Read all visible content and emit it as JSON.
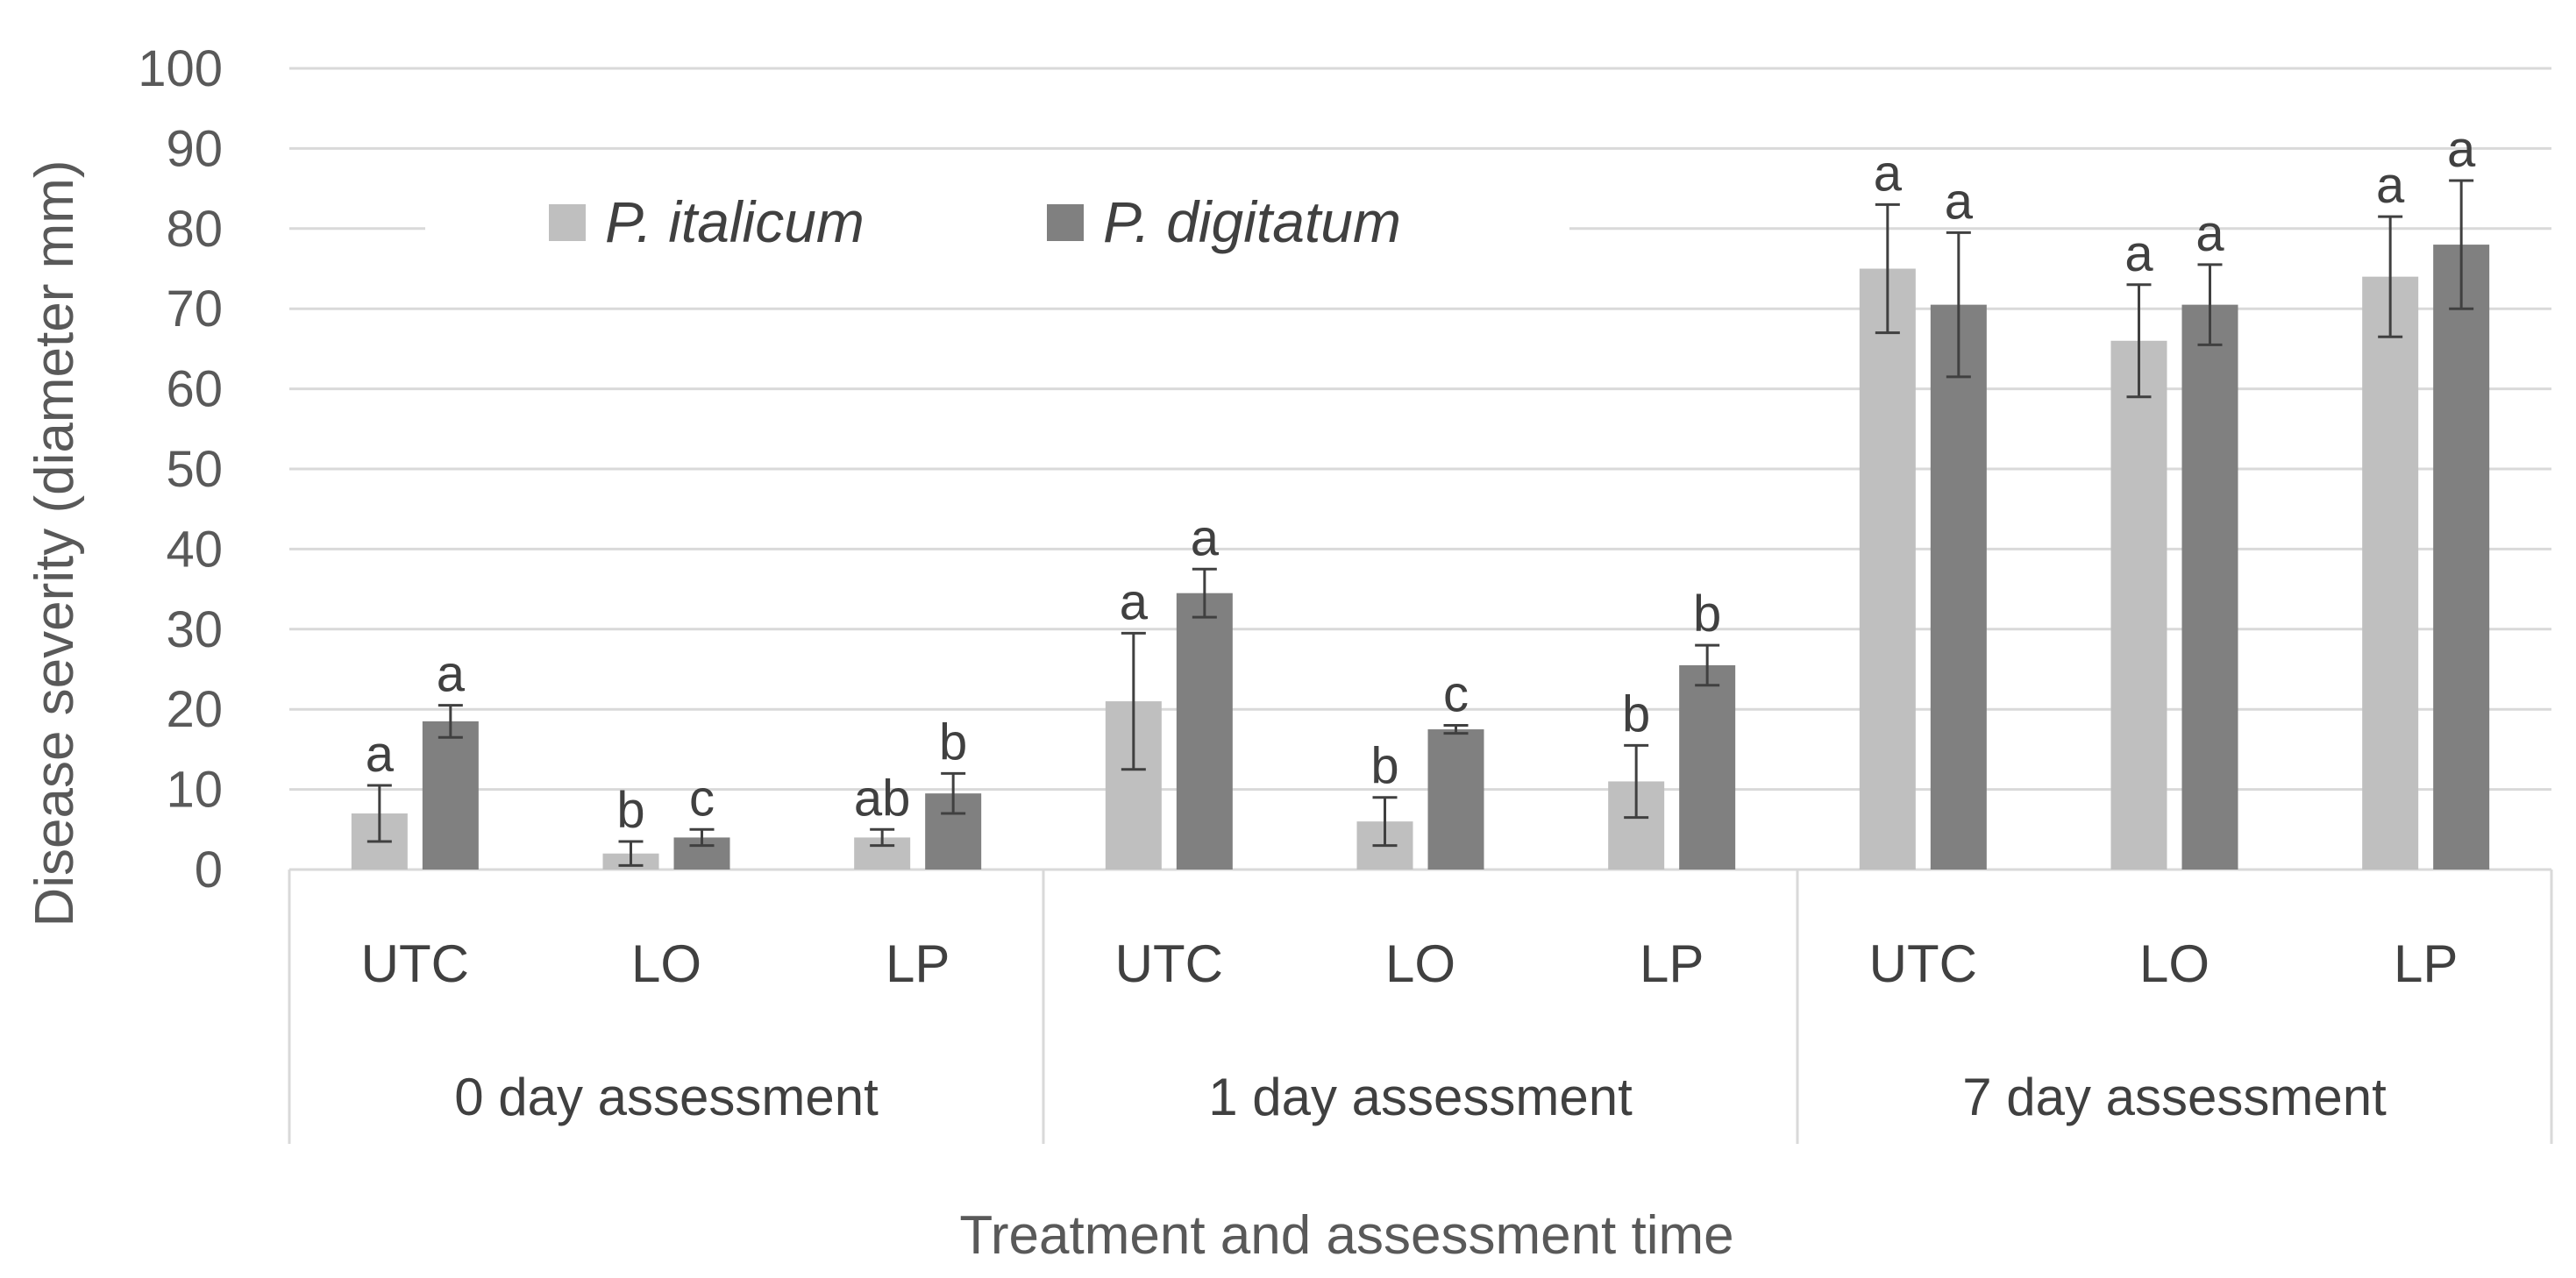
{
  "chart_data": {
    "type": "bar",
    "title": "",
    "xlabel": "Treatment and assessment time",
    "ylabel": "Disease  severity (diameter mm)",
    "ylim": [
      0,
      100
    ],
    "yticks": [
      0,
      10,
      20,
      30,
      40,
      50,
      60,
      70,
      80,
      90,
      100
    ],
    "grid": true,
    "legend_position": "top-left",
    "groups": [
      "0 day assessment",
      "1 day assessment",
      "7 day assessment"
    ],
    "categories": [
      "UTC",
      "LO",
      "LP",
      "UTC",
      "LO",
      "LP",
      "UTC",
      "LO",
      "LP"
    ],
    "series": [
      {
        "name": "P. italicum",
        "color": "#bfbfbf",
        "values": [
          7,
          2,
          4,
          21,
          6,
          11,
          75,
          66,
          74
        ],
        "errors": [
          3.5,
          1.5,
          1,
          8.5,
          3,
          4.5,
          8,
          7,
          7.5
        ],
        "letters": [
          "a",
          "b",
          "ab",
          "a",
          "b",
          "b",
          "a",
          "a",
          "a"
        ]
      },
      {
        "name": "P. digitatum",
        "color": "#808080",
        "values": [
          18.5,
          4,
          9.5,
          34.5,
          17.5,
          25.5,
          70.5,
          70.5,
          78
        ],
        "errors": [
          2,
          1,
          2.5,
          3,
          0.5,
          2.5,
          9,
          5,
          8
        ],
        "letters": [
          "a",
          "c",
          "b",
          "a",
          "c",
          "b",
          "a",
          "a",
          "a"
        ]
      }
    ]
  }
}
